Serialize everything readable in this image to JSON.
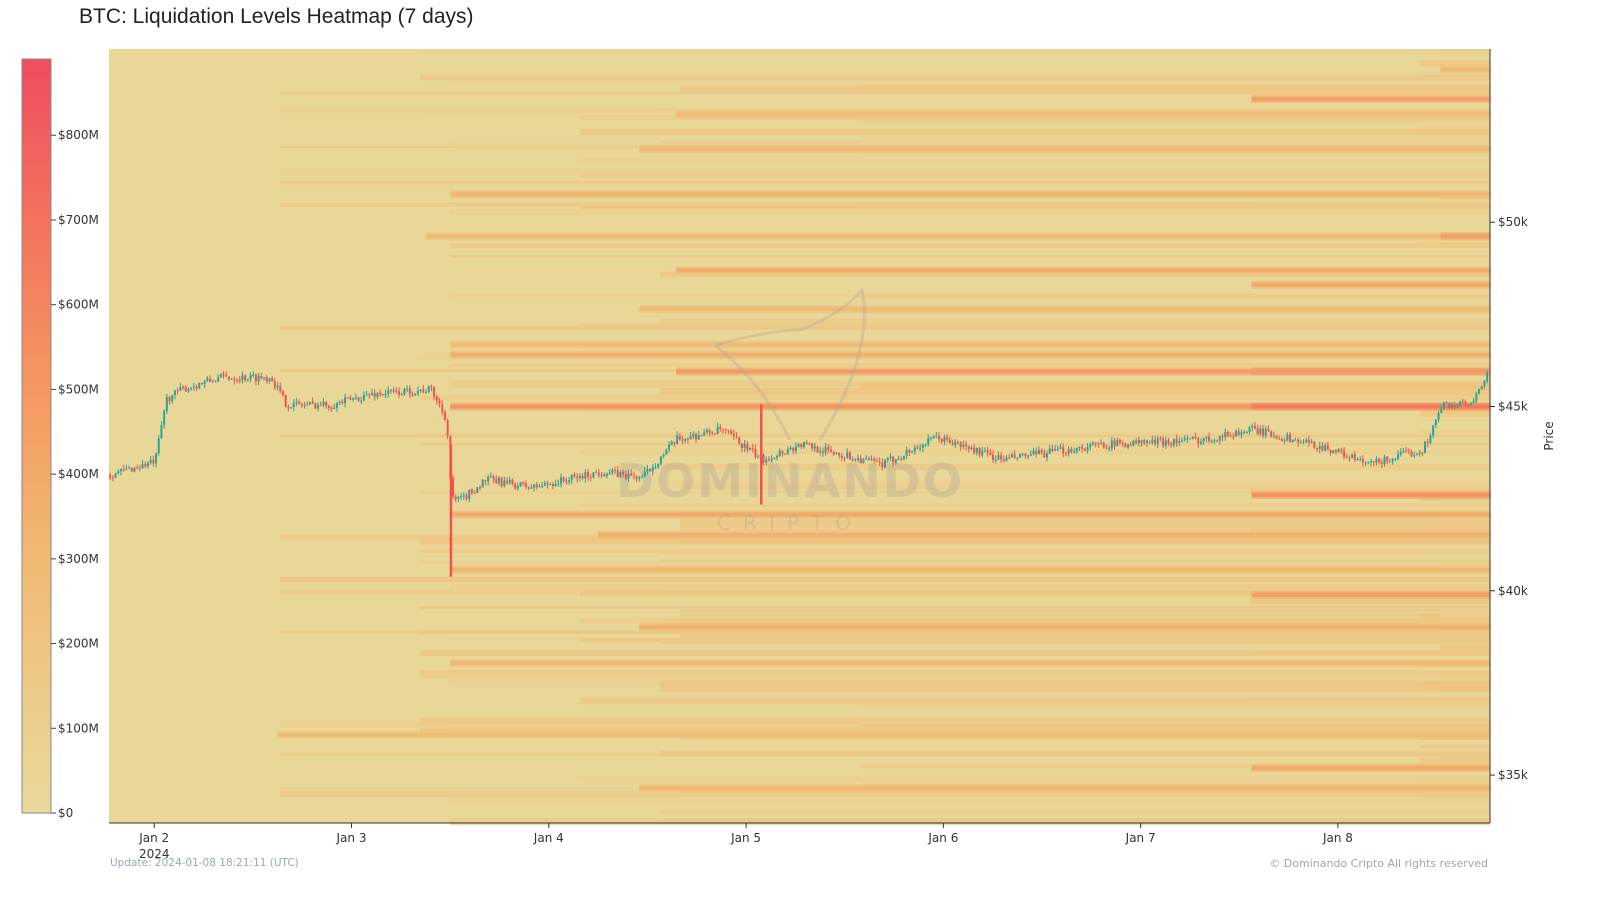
{
  "title": "BTC: Liquidation Levels Heatmap (7 days)",
  "update_text": "Update: 2024-01-08 18:21:11 (UTC)",
  "copyright": "© Dominando Cripto All rights reserved",
  "watermark": "DOMINANDO CRIPTO",
  "chart_data": {
    "type": "heatmap",
    "title": "BTC: Liquidation Levels Heatmap (7 days)",
    "xlabel": "",
    "ylabel": "Price",
    "x_range": [
      "2024-01-01T18:30",
      "2024-01-08T18:30"
    ],
    "y_range": [
      33700,
      54700
    ],
    "x_ticks": [
      {
        "date": "2024-01-02",
        "label": "Jan 2",
        "sublabel": "2024"
      },
      {
        "date": "2024-01-03",
        "label": "Jan 3"
      },
      {
        "date": "2024-01-04",
        "label": "Jan 4"
      },
      {
        "date": "2024-01-05",
        "label": "Jan 5"
      },
      {
        "date": "2024-01-06",
        "label": "Jan 6"
      },
      {
        "date": "2024-01-07",
        "label": "Jan 7"
      },
      {
        "date": "2024-01-08",
        "label": "Jan 8"
      }
    ],
    "y_ticks": [
      {
        "value": 35000,
        "label": "$35k"
      },
      {
        "value": 40000,
        "label": "$40k"
      },
      {
        "value": 45000,
        "label": "$45k"
      },
      {
        "value": 50000,
        "label": "$50k"
      }
    ],
    "colorbar": {
      "range": [
        0,
        890000000
      ],
      "ticks": [
        {
          "value": 0,
          "label": "$0"
        },
        {
          "value": 100000000,
          "label": "$100M"
        },
        {
          "value": 200000000,
          "label": "$200M"
        },
        {
          "value": 300000000,
          "label": "$300M"
        },
        {
          "value": 400000000,
          "label": "$400M"
        },
        {
          "value": 500000000,
          "label": "$500M"
        },
        {
          "value": 600000000,
          "label": "$600M"
        },
        {
          "value": 700000000,
          "label": "$700M"
        },
        {
          "value": 800000000,
          "label": "$800M"
        }
      ],
      "colorscale": [
        [
          0,
          "#e9d99a"
        ],
        [
          0.35,
          "#f0b872"
        ],
        [
          0.6,
          "#f5925e"
        ],
        [
          1,
          "#ef4d5e"
        ]
      ]
    },
    "grid": false,
    "liquidation_bands": [
      {
        "price": 45950,
        "from": "2024-01-07T13:30",
        "value": 800000000
      },
      {
        "price": 45950,
        "from": "2024-01-04T15:30",
        "value": 480000000
      },
      {
        "price": 45000,
        "from": "2024-01-03T12:00",
        "value": 520000000
      },
      {
        "price": 45000,
        "from": "2024-01-07T13:30",
        "value": 660000000
      },
      {
        "price": 46410,
        "from": "2024-01-03T12:00",
        "value": 360000000
      },
      {
        "price": 46680,
        "from": "2024-01-03T12:00",
        "value": 280000000
      },
      {
        "price": 47640,
        "from": "2024-01-04T11:00",
        "value": 280000000
      },
      {
        "price": 48300,
        "from": "2024-01-07T13:30",
        "value": 400000000
      },
      {
        "price": 48700,
        "from": "2024-01-04T15:30",
        "value": 380000000
      },
      {
        "price": 49620,
        "from": "2024-01-03T09:00",
        "value": 280000000
      },
      {
        "price": 49620,
        "from": "2024-01-08T12:30",
        "value": 450000000
      },
      {
        "price": 50760,
        "from": "2024-01-03T12:00",
        "value": 320000000
      },
      {
        "price": 51980,
        "from": "2024-01-04T11:00",
        "value": 280000000
      },
      {
        "price": 52930,
        "from": "2024-01-04T15:30",
        "value": 280000000
      },
      {
        "price": 53340,
        "from": "2024-01-07T13:30",
        "value": 450000000
      },
      {
        "price": 54150,
        "from": "2024-01-08T12:30",
        "value": 300000000
      },
      {
        "price": 42600,
        "from": "2024-01-07T13:30",
        "value": 540000000
      },
      {
        "price": 42070,
        "from": "2024-01-03T12:00",
        "value": 400000000
      },
      {
        "price": 41520,
        "from": "2024-01-04T06:00",
        "value": 360000000
      },
      {
        "price": 40570,
        "from": "2024-01-03T12:00",
        "value": 320000000
      },
      {
        "price": 39890,
        "from": "2024-01-07T13:30",
        "value": 450000000
      },
      {
        "price": 39020,
        "from": "2024-01-04T11:00",
        "value": 360000000
      },
      {
        "price": 38040,
        "from": "2024-01-03T12:00",
        "value": 320000000
      },
      {
        "price": 36090,
        "from": "2024-01-02T15:00",
        "value": 270000000
      },
      {
        "price": 35190,
        "from": "2024-01-07T13:30",
        "value": 400000000
      },
      {
        "price": 34650,
        "from": "2024-01-04T11:00",
        "value": 320000000
      }
    ],
    "price_series": {
      "type": "candlestick",
      "up_color": "#26a69a",
      "down_color": "#ef5350",
      "points": [
        [
          "2024-01-01T18:31",
          43150
        ],
        [
          "2024-01-02T00:00",
          43505
        ],
        [
          "2024-01-02T01:20",
          45190
        ],
        [
          "2024-01-02T03:10",
          45460
        ],
        [
          "2024-01-02T08:02",
          45790
        ],
        [
          "2024-01-02T14:08",
          45790
        ],
        [
          "2024-01-02T15:58",
          45050
        ],
        [
          "2024-01-02T21:26",
          45050
        ],
        [
          "2024-01-03T02:18",
          45330
        ],
        [
          "2024-01-03T09:37",
          45460
        ],
        [
          "2024-01-03T11:27",
          44650
        ],
        [
          "2024-01-03T12:04",
          42470
        ],
        [
          "2024-01-03T13:16",
          42470
        ],
        [
          "2024-01-03T16:19",
          43020
        ],
        [
          "2024-01-03T21:49",
          42800
        ],
        [
          "2024-01-04T06:20",
          43230
        ],
        [
          "2024-01-04T11:12",
          43070
        ],
        [
          "2024-01-04T15:29",
          44100
        ],
        [
          "2024-01-04T20:57",
          44375
        ],
        [
          "2024-01-05T01:49",
          43560
        ],
        [
          "2024-01-05T06:41",
          43970
        ],
        [
          "2024-01-05T16:26",
          43420
        ],
        [
          "2024-01-05T23:08",
          44160
        ],
        [
          "2024-01-06T07:03",
          43560
        ],
        [
          "2024-01-06T19:15",
          43970
        ],
        [
          "2024-01-07T07:26",
          44100
        ],
        [
          "2024-01-07T13:31",
          44375
        ],
        [
          "2024-01-07T23:16",
          43830
        ],
        [
          "2024-01-08T03:32",
          43420
        ],
        [
          "2024-01-08T10:14",
          43830
        ],
        [
          "2024-01-08T12:40",
          45050
        ],
        [
          "2024-01-08T16:19",
          45050
        ],
        [
          "2024-01-08T18:15",
          46000
        ]
      ],
      "wicks": [
        [
          "2024-01-03T12:04",
          40380
        ],
        [
          "2024-01-05T01:49",
          42340
        ]
      ]
    }
  }
}
